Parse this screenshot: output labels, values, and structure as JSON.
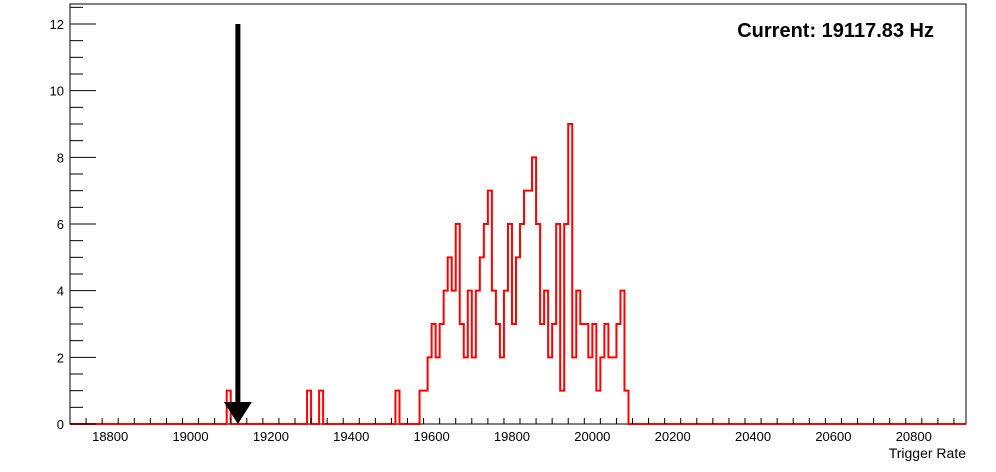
{
  "readout": "Current: 19117.83 Hz",
  "chart_data": {
    "type": "histogram",
    "title": "",
    "xlabel": "Trigger Rate",
    "ylabel": "",
    "xlim": [
      18700,
      20930
    ],
    "ylim": [
      0,
      12.6
    ],
    "x_ticks": [
      18800,
      19000,
      19200,
      19400,
      19600,
      19800,
      20000,
      20200,
      20400,
      20600,
      20800
    ],
    "y_ticks": [
      0,
      2,
      4,
      6,
      8,
      10,
      12
    ],
    "bin_width": 10,
    "grid": false,
    "series": [
      {
        "color": "#ff0000",
        "bins": [
          [
            19090,
            1
          ],
          [
            19290,
            1
          ],
          [
            19320,
            1
          ],
          [
            19510,
            1
          ],
          [
            19570,
            1
          ],
          [
            19580,
            1
          ],
          [
            19590,
            2
          ],
          [
            19600,
            3
          ],
          [
            19610,
            2
          ],
          [
            19620,
            3
          ],
          [
            19630,
            4
          ],
          [
            19640,
            5
          ],
          [
            19650,
            4
          ],
          [
            19660,
            6
          ],
          [
            19670,
            3
          ],
          [
            19680,
            2
          ],
          [
            19690,
            4
          ],
          [
            19700,
            2
          ],
          [
            19710,
            4
          ],
          [
            19720,
            5
          ],
          [
            19730,
            6
          ],
          [
            19740,
            7
          ],
          [
            19750,
            4
          ],
          [
            19760,
            3
          ],
          [
            19770,
            2
          ],
          [
            19780,
            4
          ],
          [
            19790,
            6
          ],
          [
            19800,
            3
          ],
          [
            19810,
            5
          ],
          [
            19820,
            6
          ],
          [
            19830,
            7
          ],
          [
            19840,
            7
          ],
          [
            19850,
            8
          ],
          [
            19860,
            6
          ],
          [
            19870,
            3
          ],
          [
            19880,
            4
          ],
          [
            19890,
            2
          ],
          [
            19900,
            3
          ],
          [
            19910,
            6
          ],
          [
            19920,
            1
          ],
          [
            19930,
            6
          ],
          [
            19940,
            9
          ],
          [
            19950,
            2
          ],
          [
            19960,
            4
          ],
          [
            19970,
            3
          ],
          [
            19980,
            3
          ],
          [
            19990,
            2
          ],
          [
            20000,
            3
          ],
          [
            20010,
            1
          ],
          [
            20020,
            2
          ],
          [
            20030,
            3
          ],
          [
            20040,
            2
          ],
          [
            20050,
            2
          ],
          [
            20060,
            3
          ],
          [
            20070,
            4
          ],
          [
            20080,
            1
          ]
        ]
      }
    ],
    "marker": {
      "type": "arrow",
      "x": 19117.83,
      "y_from": 12,
      "y_to": 0,
      "color": "#000000"
    }
  }
}
